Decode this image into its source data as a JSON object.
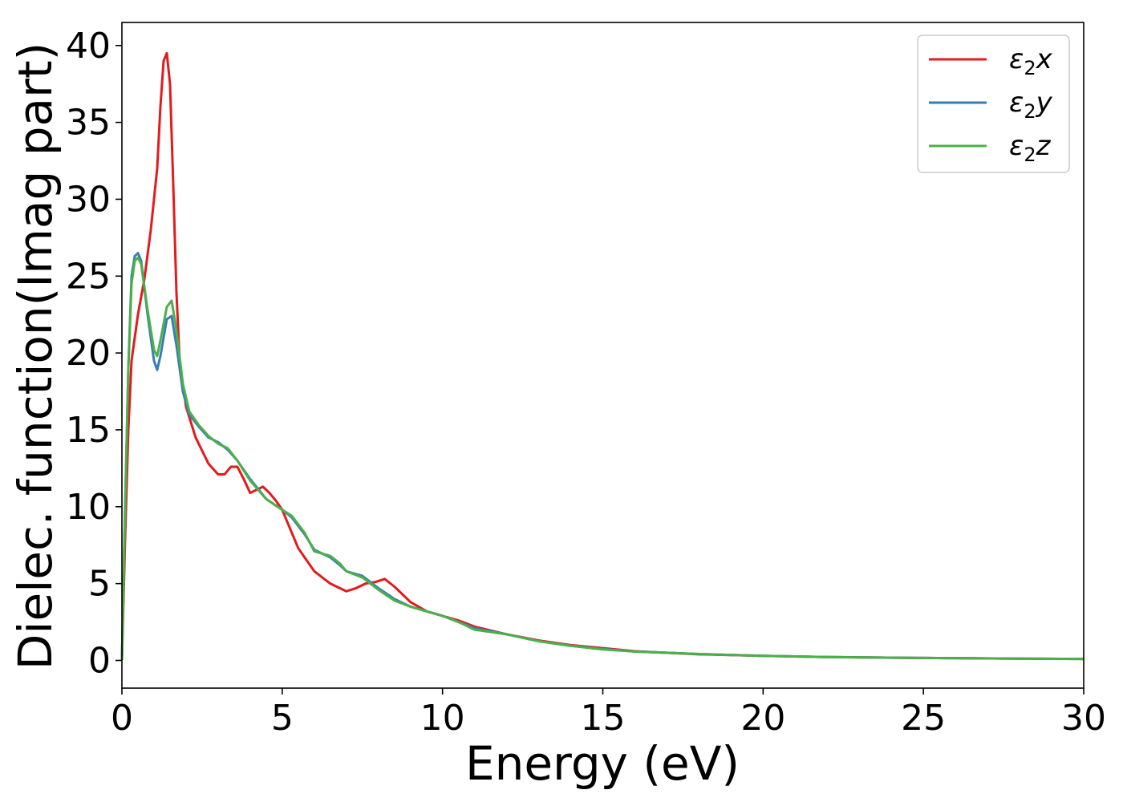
{
  "chart_data": {
    "type": "line",
    "title": "",
    "xlabel": "Energy (eV)",
    "ylabel": "Dielec. function(Imag part)",
    "xlim": [
      0,
      30
    ],
    "ylim": [
      -1.8,
      41.5
    ],
    "xticks": [
      0,
      5,
      10,
      15,
      20,
      25,
      30
    ],
    "yticks": [
      0,
      5,
      10,
      15,
      20,
      25,
      30,
      35,
      40
    ],
    "grid": false,
    "legend_position": "top-right",
    "series": [
      {
        "name": "ε₂x",
        "legend_base": "ε",
        "legend_sub": "2",
        "legend_suffix": "x",
        "color": "#e41a1c",
        "x": [
          0,
          0.1,
          0.2,
          0.3,
          0.5,
          0.7,
          0.9,
          1.1,
          1.2,
          1.3,
          1.4,
          1.5,
          1.6,
          1.7,
          1.8,
          2.0,
          2.3,
          2.7,
          3.0,
          3.2,
          3.4,
          3.6,
          3.8,
          4.0,
          4.2,
          4.4,
          4.6,
          4.8,
          5.0,
          5.5,
          6.0,
          6.5,
          7.0,
          7.3,
          7.6,
          7.9,
          8.2,
          8.5,
          9.0,
          9.5,
          10.0,
          10.5,
          11.0,
          12.0,
          13.0,
          14.0,
          15.0,
          16.0,
          18.0,
          20.0,
          22.0,
          25.0,
          28.0,
          30.0
        ],
        "y": [
          0,
          8,
          15,
          19.5,
          22.5,
          24.8,
          28,
          32,
          36,
          39,
          39.5,
          37.5,
          31,
          24,
          19.5,
          16.5,
          14.5,
          12.8,
          12.1,
          12.1,
          12.6,
          12.6,
          11.8,
          10.9,
          11.1,
          11.3,
          10.9,
          10.4,
          9.8,
          7.3,
          5.8,
          5.0,
          4.5,
          4.7,
          5.0,
          5.1,
          5.3,
          4.8,
          3.8,
          3.2,
          2.9,
          2.6,
          2.2,
          1.7,
          1.3,
          1.0,
          0.8,
          0.6,
          0.4,
          0.3,
          0.22,
          0.16,
          0.12,
          0.1
        ]
      },
      {
        "name": "ε₂y",
        "legend_base": "ε",
        "legend_sub": "2",
        "legend_suffix": "y",
        "color": "#377eb8",
        "x": [
          0,
          0.1,
          0.2,
          0.3,
          0.4,
          0.5,
          0.6,
          0.8,
          1.0,
          1.1,
          1.2,
          1.4,
          1.55,
          1.7,
          1.9,
          2.1,
          2.4,
          2.7,
          3.0,
          3.3,
          3.6,
          4.0,
          4.5,
          5.0,
          5.3,
          5.7,
          6.0,
          6.5,
          6.8,
          7.0,
          7.5,
          8.0,
          8.5,
          9.0,
          9.5,
          10.0,
          10.5,
          11.0,
          12.0,
          13.0,
          14.0,
          15.0,
          16.0,
          18.0,
          20.0,
          22.0,
          25.0,
          28.0,
          30.0
        ],
        "y": [
          0,
          10,
          19,
          25,
          26.3,
          26.5,
          26,
          22.5,
          19.5,
          18.9,
          19.8,
          22.2,
          22.4,
          20.5,
          17.5,
          16,
          15.2,
          14.5,
          14.2,
          13.7,
          13.0,
          11.8,
          10.5,
          9.8,
          9.3,
          8.2,
          7.2,
          6.7,
          6.2,
          5.8,
          5.5,
          4.7,
          4.0,
          3.5,
          3.2,
          2.9,
          2.5,
          2.1,
          1.7,
          1.25,
          0.95,
          0.75,
          0.58,
          0.42,
          0.3,
          0.22,
          0.16,
          0.12,
          0.1
        ]
      },
      {
        "name": "ε₂z",
        "legend_base": "ε",
        "legend_sub": "2",
        "legend_suffix": "z",
        "color": "#4daf4a",
        "x": [
          0,
          0.1,
          0.2,
          0.3,
          0.4,
          0.5,
          0.6,
          0.8,
          1.0,
          1.1,
          1.2,
          1.4,
          1.55,
          1.7,
          1.9,
          2.1,
          2.4,
          2.7,
          3.0,
          3.3,
          3.6,
          4.0,
          4.5,
          5.0,
          5.3,
          5.7,
          6.0,
          6.5,
          6.8,
          7.0,
          7.5,
          8.0,
          8.5,
          9.0,
          9.5,
          10.0,
          10.5,
          11.0,
          12.0,
          13.0,
          14.0,
          15.0,
          16.0,
          18.0,
          20.0,
          22.0,
          25.0,
          28.0,
          30.0
        ],
        "y": [
          0,
          10,
          19,
          24.5,
          26,
          26.2,
          25.8,
          22.8,
          20.2,
          19.8,
          20.8,
          23.0,
          23.4,
          21.5,
          18,
          16.2,
          15.3,
          14.6,
          14.1,
          13.8,
          13.0,
          11.7,
          10.5,
          9.8,
          9.4,
          8.3,
          7.1,
          6.8,
          6.3,
          5.8,
          5.4,
          4.6,
          3.9,
          3.5,
          3.2,
          2.9,
          2.5,
          2.0,
          1.7,
          1.25,
          0.95,
          0.72,
          0.58,
          0.42,
          0.3,
          0.22,
          0.16,
          0.12,
          0.1
        ]
      }
    ]
  }
}
